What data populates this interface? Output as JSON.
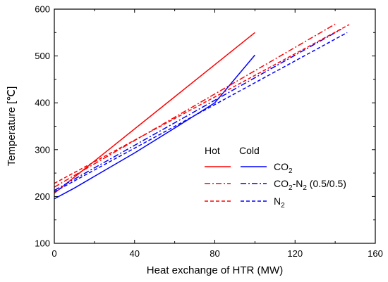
{
  "chart_data": {
    "type": "line",
    "xlabel": "Heat exchange of HTR (MW)",
    "ylabel": "Temperature [℃]",
    "xlim": [
      0,
      160
    ],
    "ylim": [
      100,
      600
    ],
    "xticks": [
      0,
      40,
      80,
      120,
      160
    ],
    "yticks": [
      100,
      200,
      300,
      400,
      500,
      600
    ],
    "xtick_labels": [
      "0",
      "40",
      "80",
      "120",
      "160"
    ],
    "ytick_labels": [
      "100",
      "200",
      "300",
      "400",
      "500",
      "600"
    ],
    "grid": false,
    "legend": {
      "position": "lower-right",
      "hot_header": "Hot",
      "cold_header": "Cold",
      "rows": [
        {
          "style": "solid",
          "label": "CO₂",
          "base": "CO",
          "sub": "2",
          "rest": ""
        },
        {
          "style": "dashdot",
          "label": "CO₂-N₂ (0.5/0.5)",
          "base": "CO",
          "sub": "2",
          "rest": "-N",
          "sub2": "2",
          "tail": " (0.5/0.5)"
        },
        {
          "style": "dashed",
          "label": "N₂",
          "base": "N",
          "sub": "2",
          "rest": ""
        }
      ]
    },
    "colors": {
      "hot": "#ff0000",
      "cold": "#0000ff"
    },
    "series": [
      {
        "group": "CO₂",
        "side": "Hot",
        "color": "#ff0000",
        "style": "solid",
        "x": [
          0,
          100
        ],
        "y": [
          207,
          550
        ]
      },
      {
        "group": "CO₂",
        "side": "Cold",
        "color": "#0000ff",
        "style": "solid",
        "x": [
          0,
          10,
          20,
          30,
          40,
          60,
          80,
          100
        ],
        "y": [
          195,
          218,
          243,
          268,
          293,
          346,
          400,
          502
        ]
      },
      {
        "group": "CO₂-N₂ (0.5/0.5)",
        "side": "Hot",
        "color": "#ff0000",
        "style": "dashdot",
        "x": [
          0,
          140
        ],
        "y": [
          220,
          568
        ]
      },
      {
        "group": "CO₂-N₂ (0.5/0.5)",
        "side": "Cold",
        "color": "#0000ff",
        "style": "dashdot",
        "x": [
          0,
          143
        ],
        "y": [
          213,
          557
        ]
      },
      {
        "group": "N₂",
        "side": "Hot",
        "color": "#ff0000",
        "style": "dashed",
        "x": [
          0,
          147
        ],
        "y": [
          228,
          567
        ]
      },
      {
        "group": "N₂",
        "side": "Cold",
        "color": "#0000ff",
        "style": "dashed",
        "x": [
          0,
          146
        ],
        "y": [
          210,
          550
        ]
      }
    ]
  }
}
